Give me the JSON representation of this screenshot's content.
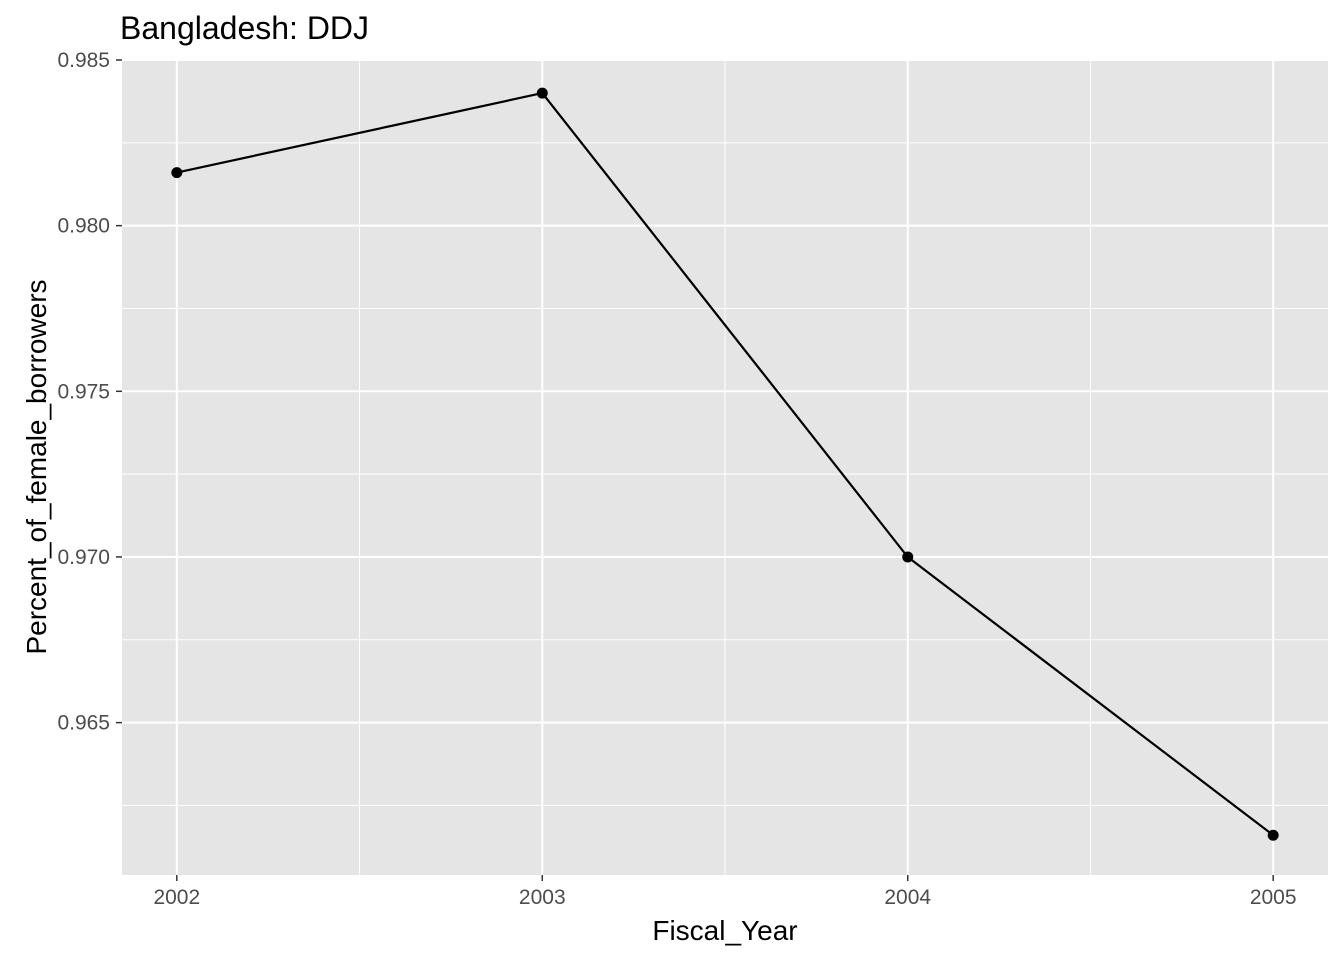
{
  "chart_data": {
    "type": "line",
    "title": "Bangladesh:  DDJ",
    "xlabel": "Fiscal_Year",
    "ylabel": "Percent_of_female_borrowers",
    "x": [
      2002,
      2003,
      2004,
      2005
    ],
    "y": [
      0.9816,
      0.984,
      0.97,
      0.9616
    ],
    "xticks": [
      "2002",
      "2003",
      "2004",
      "2005"
    ],
    "yticks": [
      "0.965",
      "0.970",
      "0.975",
      "0.980",
      "0.985"
    ],
    "xlim": [
      2001.85,
      2005.15
    ],
    "ylim": [
      0.9604,
      0.985
    ],
    "grid": true,
    "colors": {
      "panel": "#e5e5e5",
      "grid": "#ffffff",
      "line": "#000000",
      "tick": "#333333"
    }
  }
}
